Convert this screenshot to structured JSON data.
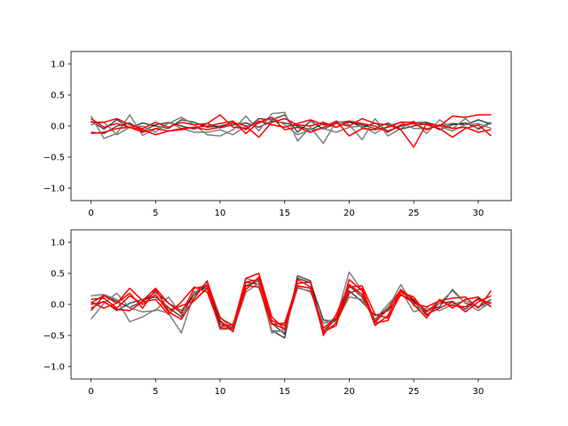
{
  "chart_data": [
    {
      "type": "line",
      "title": "",
      "xlabel": "",
      "ylabel": "",
      "xlim": [
        -1.55,
        32.55
      ],
      "ylim": [
        -1.2,
        1.2
      ],
      "xticks": [
        0,
        5,
        10,
        15,
        20,
        25,
        30
      ],
      "xtick_labels": [
        "0",
        "5",
        "10",
        "15",
        "20",
        "25",
        "30"
      ],
      "yticks": [
        -1.0,
        -0.5,
        0.0,
        0.5,
        1.0
      ],
      "ytick_labels": [
        "−1.0",
        "−0.5",
        "0.0",
        "0.5",
        "1.0"
      ],
      "grid": false,
      "series": [
        {
          "color": "#000000",
          "alpha": 0.7,
          "values": [
            0.08,
            -0.05,
            0.1,
            -0.03,
            0.05,
            0.0,
            -0.04,
            0.1,
            0.06,
            -0.02,
            0.0,
            0.05,
            -0.06,
            0.12,
            0.1,
            0.18,
            -0.1,
            0.08,
            -0.05,
            0.05,
            0.08,
            -0.02,
            0.05,
            -0.08,
            0.0,
            0.05,
            0.06,
            0.0,
            0.04,
            0.02,
            0.1,
            0.03
          ]
        },
        {
          "color": "#000000",
          "alpha": 0.7,
          "values": [
            -0.1,
            -0.12,
            0.0,
            0.05,
            -0.08,
            0.02,
            0.06,
            0.0,
            -0.05,
            0.04,
            -0.03,
            0.02,
            0.05,
            -0.02,
            0.08,
            0.05,
            0.0,
            -0.06,
            0.04,
            -0.02,
            0.06,
            0.02,
            -0.04,
            0.05,
            -0.05,
            0.0,
            0.04,
            -0.06,
            0.02,
            0.05,
            -0.04,
            0.06
          ]
        },
        {
          "color": "#808080",
          "alpha": 1.0,
          "values": [
            0.16,
            -0.2,
            -0.12,
            0.18,
            -0.15,
            -0.05,
            0.04,
            0.14,
            0.02,
            -0.14,
            -0.16,
            -0.06,
            0.16,
            -0.08,
            0.2,
            0.22,
            -0.24,
            -0.02,
            -0.28,
            0.08,
            0.02,
            -0.22,
            0.12,
            -0.16,
            -0.04,
            0.08,
            -0.12,
            0.1,
            -0.04,
            0.12,
            -0.06,
            0.05
          ]
        },
        {
          "color": "#808080",
          "alpha": 1.0,
          "values": [
            0.02,
            0.06,
            -0.14,
            -0.02,
            0.0,
            -0.1,
            0.06,
            -0.04,
            -0.1,
            -0.1,
            -0.06,
            -0.14,
            0.0,
            0.04,
            0.14,
            0.02,
            -0.14,
            -0.06,
            -0.04,
            -0.1,
            -0.02,
            0.0,
            -0.12,
            0.0,
            0.06,
            -0.04,
            -0.04,
            0.0,
            -0.08,
            0.02,
            0.04,
            -0.04
          ]
        },
        {
          "color": "#ff0000",
          "alpha": 1.0,
          "values": [
            0.06,
            0.06,
            0.12,
            0.02,
            -0.04,
            0.06,
            -0.02,
            0.06,
            0.02,
            0.04,
            0.18,
            -0.02,
            -0.04,
            0.08,
            0.02,
            -0.02,
            0.04,
            0.1,
            0.02,
            0.04,
            0.0,
            0.12,
            0.04,
            0.02,
            -0.06,
            -0.34,
            0.04,
            0.0,
            0.16,
            0.14,
            0.18,
            0.18
          ]
        },
        {
          "color": "#ff0000",
          "alpha": 1.0,
          "values": [
            0.12,
            -0.02,
            0.04,
            -0.02,
            -0.1,
            -0.04,
            -0.08,
            -0.04,
            -0.02,
            -0.06,
            -0.02,
            0.06,
            0.0,
            -0.18,
            0.06,
            0.12,
            0.02,
            0.0,
            0.06,
            -0.02,
            0.08,
            0.04,
            0.0,
            -0.1,
            0.02,
            0.04,
            -0.06,
            0.02,
            -0.04,
            -0.02,
            -0.1,
            -0.06
          ]
        },
        {
          "color": "#ff0000",
          "alpha": 1.0,
          "values": [
            -0.12,
            -0.1,
            -0.04,
            -0.02,
            -0.06,
            -0.14,
            -0.08,
            -0.06,
            -0.02,
            0.0,
            0.04,
            0.08,
            -0.12,
            0.06,
            0.14,
            -0.06,
            -0.02,
            -0.1,
            -0.02,
            0.08,
            -0.16,
            -0.04,
            -0.06,
            -0.02,
            0.06,
            0.06,
            0.02,
            -0.04,
            -0.18,
            -0.04,
            0.02,
            -0.16
          ]
        }
      ]
    },
    {
      "type": "line",
      "title": "",
      "xlabel": "",
      "ylabel": "",
      "xlim": [
        -1.55,
        32.55
      ],
      "ylim": [
        -1.2,
        1.2
      ],
      "xticks": [
        0,
        5,
        10,
        15,
        20,
        25,
        30
      ],
      "xtick_labels": [
        "0",
        "5",
        "10",
        "15",
        "20",
        "25",
        "30"
      ],
      "yticks": [
        -1.0,
        -0.5,
        0.0,
        0.5,
        1.0
      ],
      "ytick_labels": [
        "−1.0",
        "−0.5",
        "0.0",
        "0.5",
        "1.0"
      ],
      "grid": false,
      "series": [
        {
          "color": "#000000",
          "alpha": 0.7,
          "values": [
            0.02,
            0.15,
            0.05,
            -0.05,
            0.05,
            0.2,
            0.02,
            -0.1,
            0.15,
            0.32,
            -0.28,
            -0.4,
            0.3,
            0.38,
            -0.3,
            -0.48,
            0.42,
            0.35,
            -0.25,
            -0.28,
            0.3,
            0.12,
            -0.25,
            -0.05,
            0.22,
            0.05,
            -0.18,
            0.02,
            0.05,
            -0.08,
            0.1,
            -0.04
          ]
        },
        {
          "color": "#000000",
          "alpha": 0.7,
          "values": [
            -0.06,
            0.05,
            -0.1,
            0.02,
            0.08,
            0.12,
            -0.05,
            -0.2,
            0.2,
            0.28,
            -0.32,
            -0.36,
            0.36,
            0.32,
            -0.42,
            -0.54,
            0.46,
            0.38,
            -0.42,
            -0.24,
            0.22,
            0.04,
            -0.18,
            -0.1,
            0.15,
            0.06,
            -0.1,
            -0.04,
            0.24,
            0.02,
            -0.04,
            0.08
          ]
        },
        {
          "color": "#808080",
          "alpha": 1.0,
          "values": [
            0.14,
            0.16,
            0.08,
            -0.28,
            -0.2,
            -0.08,
            -0.14,
            -0.46,
            0.18,
            0.36,
            -0.2,
            -0.42,
            0.2,
            0.34,
            -0.46,
            -0.4,
            0.26,
            0.22,
            -0.3,
            -0.22,
            0.52,
            0.22,
            -0.3,
            -0.06,
            0.32,
            -0.02,
            -0.12,
            0.02,
            0.22,
            0.02,
            -0.1,
            0.04
          ]
        },
        {
          "color": "#808080",
          "alpha": 1.0,
          "values": [
            -0.24,
            0.02,
            0.18,
            -0.06,
            -0.12,
            -0.1,
            0.12,
            -0.16,
            0.06,
            0.28,
            -0.4,
            -0.4,
            0.42,
            0.36,
            -0.42,
            -0.44,
            0.28,
            0.2,
            -0.3,
            -0.28,
            0.12,
            0.08,
            -0.24,
            0.0,
            0.22,
            -0.12,
            -0.06,
            -0.1,
            0.0,
            0.06,
            -0.04,
            0.02
          ]
        },
        {
          "color": "#ff0000",
          "alpha": 1.0,
          "values": [
            0.04,
            -0.06,
            0.02,
            0.26,
            0.06,
            0.26,
            0.02,
            -0.14,
            0.26,
            0.3,
            -0.22,
            -0.34,
            0.42,
            0.5,
            -0.2,
            -0.4,
            0.3,
            0.26,
            -0.46,
            -0.3,
            0.18,
            0.26,
            -0.28,
            -0.08,
            0.24,
            0.08,
            -0.12,
            0.06,
            0.1,
            0.12,
            -0.06,
            0.22
          ]
        },
        {
          "color": "#ff0000",
          "alpha": 1.0,
          "values": [
            0.08,
            0.1,
            -0.06,
            0.14,
            0.0,
            0.16,
            -0.12,
            -0.24,
            0.1,
            0.38,
            -0.26,
            -0.44,
            0.36,
            0.4,
            -0.3,
            -0.4,
            0.4,
            0.28,
            -0.44,
            -0.34,
            0.4,
            0.22,
            -0.34,
            -0.18,
            0.24,
            0.0,
            -0.22,
            0.08,
            -0.06,
            0.08,
            0.12,
            -0.04
          ]
        },
        {
          "color": "#ff0000",
          "alpha": 1.0,
          "values": [
            0.0,
            0.04,
            -0.08,
            -0.1,
            0.04,
            0.08,
            -0.16,
            0.04,
            0.28,
            0.2,
            -0.36,
            -0.32,
            0.3,
            0.28,
            -0.32,
            -0.3,
            0.34,
            0.36,
            -0.5,
            -0.16,
            0.32,
            0.16,
            -0.3,
            -0.26,
            0.2,
            0.12,
            -0.16,
            -0.06,
            0.04,
            -0.12,
            0.04,
            0.14
          ]
        },
        {
          "color": "#ff0000",
          "alpha": 1.0,
          "values": [
            -0.1,
            0.14,
            0.02,
            0.18,
            -0.06,
            0.24,
            -0.1,
            -0.02,
            0.06,
            0.26,
            -0.38,
            -0.38,
            0.24,
            0.44,
            -0.26,
            -0.34,
            0.3,
            0.26,
            -0.38,
            -0.22,
            0.28,
            0.3,
            -0.16,
            -0.22,
            0.16,
            0.02,
            -0.04,
            0.06,
            -0.02,
            -0.04,
            0.08,
            0.02
          ]
        }
      ]
    }
  ]
}
